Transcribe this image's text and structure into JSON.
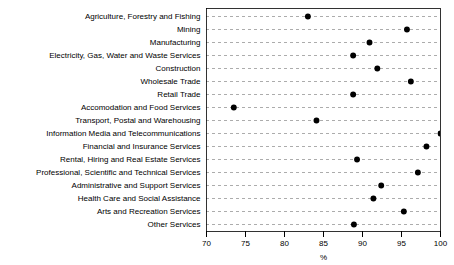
{
  "chart_data": {
    "type": "scatter",
    "orientation": "horizontal",
    "categories": [
      "Agriculture, Forestry and Fishing",
      "Mining",
      "Manufacturing",
      "Electricity, Gas, Water and Waste Services",
      "Construction",
      "Wholesale Trade",
      "Retail Trade",
      "Accomodation and Food Services",
      "Transport, Postal and Warehousing",
      "Information Media and Telecommunications",
      "Financial and Insurance Services",
      "Rental, Hiring and Real Estate Services",
      "Professional, Scientific and Technical Services",
      "Administrative and Support Services",
      "Health Care and Social Assistance",
      "Arts and Recreation Services",
      "Other Services"
    ],
    "values": [
      83.0,
      95.7,
      90.9,
      88.8,
      91.9,
      96.2,
      88.8,
      73.5,
      84.1,
      100.0,
      98.2,
      89.3,
      97.1,
      92.4,
      91.4,
      95.3,
      88.9
    ],
    "color": "#000000",
    "marker": "circle",
    "xlabel": "%",
    "xlim": [
      70,
      100
    ],
    "xticks": [
      70,
      75,
      80,
      85,
      90,
      95,
      100
    ],
    "grid": true
  }
}
